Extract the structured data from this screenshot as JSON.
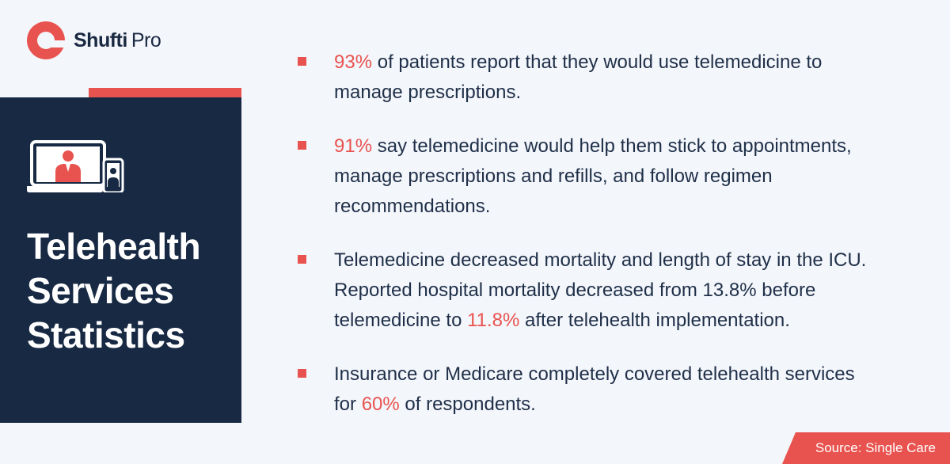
{
  "brand": {
    "name_bold": "Shufti",
    "name_light": "Pro",
    "accent_color": "#e8534f",
    "navy_color": "#172943"
  },
  "panel": {
    "icon": "doctor-laptop-phone-icon",
    "title_lines": [
      "Telehealth",
      "Services",
      "Statistics"
    ]
  },
  "stats": [
    {
      "lines": [
        [
          {
            "t": "93%",
            "hl": true
          },
          {
            "t": " of patients report that they would use telemedicine to"
          }
        ],
        [
          {
            "t": "manage prescriptions."
          }
        ]
      ]
    },
    {
      "lines": [
        [
          {
            "t": "91%",
            "hl": true
          },
          {
            "t": " say telemedicine would help them stick to appointments,"
          }
        ],
        [
          {
            "t": "manage prescriptions and refills, and follow regimen"
          }
        ],
        [
          {
            "t": "recommendations."
          }
        ]
      ]
    },
    {
      "lines": [
        [
          {
            "t": "Telemedicine decreased mortality and length of stay in the ICU."
          }
        ],
        [
          {
            "t": "Reported hospital mortality decreased from 13.8% before"
          }
        ],
        [
          {
            "t": "telemedicine to "
          },
          {
            "t": "11.8%",
            "hl": true
          },
          {
            "t": " after telehealth implementation."
          }
        ]
      ]
    },
    {
      "lines": [
        [
          {
            "t": "Insurance or Medicare completely covered telehealth services"
          }
        ],
        [
          {
            "t": "for "
          },
          {
            "t": "60%",
            "hl": true
          },
          {
            "t": " of respondents."
          }
        ]
      ]
    }
  ],
  "source": "Source: Single Care"
}
